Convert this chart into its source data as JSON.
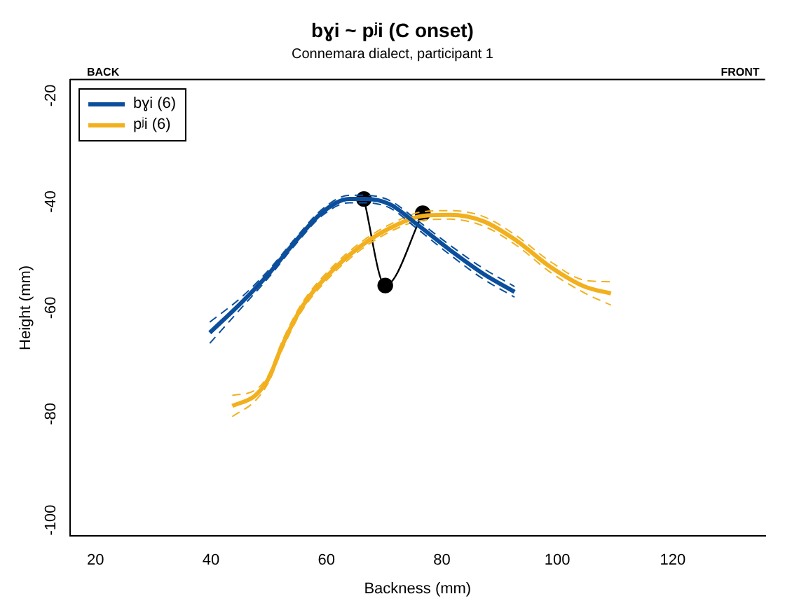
{
  "chart_data": {
    "type": "line",
    "title": "bɣi ~ pʲi (C onset)",
    "subtitle": "Connemara dialect, participant 1",
    "xlabel": "Backness (mm)",
    "ylabel": "Height (mm)",
    "annotations": [
      "BACK",
      "FRONT"
    ],
    "xlim": [
      15.6,
      136
    ],
    "xticks": [
      20,
      40,
      60,
      80,
      100,
      120
    ],
    "ylim": [
      -103,
      -17
    ],
    "yticks": [
      -100,
      -80,
      -60,
      -40,
      -20
    ],
    "grid": false,
    "legend": "top left",
    "marker": "none",
    "line_style": "solid",
    "series": [
      {
        "name": "bɣi (6)",
        "color": "#0b4f9c",
        "x": [
          39.8,
          45.3,
          50,
          54.7,
          59.3,
          64,
          66.7,
          71,
          75.6,
          81.4,
          87.2,
          92.6
        ],
        "values": [
          -64.7,
          -59,
          -53.6,
          -47.4,
          -42,
          -39.5,
          -39.5,
          -40.5,
          -44.2,
          -49.1,
          -53.6,
          -57
        ]
      },
      {
        "name": "pʲi (6)",
        "color": "#f2b01e",
        "x": [
          43.7,
          47.7,
          50,
          52.3,
          55.8,
          60.5,
          66.3,
          72.1,
          76.7,
          81.4,
          87.2,
          93,
          98.8,
          104.7,
          109.3
        ],
        "values": [
          -78.5,
          -76.5,
          -73.3,
          -67.2,
          -59.8,
          -53.6,
          -48.1,
          -44.4,
          -42.7,
          -42.5,
          -43.7,
          -47.4,
          -52.3,
          -56,
          -57.3
        ]
      },
      {
        "color": "#0b4f9c",
        "line_style": "dashed",
        "x": [
          39.8,
          45.3,
          50,
          54.7,
          59.3,
          64,
          66.7,
          71,
          75.6,
          81.4,
          87.2,
          92.6
        ],
        "values": [
          -66.7,
          -60,
          -54.3,
          -48,
          -42.6,
          -40.2,
          -40.2,
          -41.2,
          -45,
          -50,
          -54.6,
          -58
        ]
      },
      {
        "color": "#0b4f9c",
        "line_style": "dashed",
        "x": [
          39.8,
          45.3,
          50,
          54.7,
          59.3,
          64,
          66.7,
          71,
          75.6,
          81.4,
          87.2,
          92.6
        ],
        "values": [
          -62.7,
          -58,
          -52.9,
          -46.8,
          -41.4,
          -38.8,
          -38.8,
          -39.8,
          -43.4,
          -48.2,
          -52.6,
          -56
        ]
      },
      {
        "color": "#f2b01e",
        "line_style": "dashed",
        "x": [
          43.7,
          47.7,
          50,
          52.3,
          55.8,
          60.5,
          66.3,
          72.1,
          76.7,
          81.4,
          87.2,
          93,
          98.8,
          104.7,
          109.3
        ],
        "values": [
          -80.5,
          -77.5,
          -74,
          -68,
          -60.5,
          -54.3,
          -48.8,
          -45.1,
          -43.5,
          -43.3,
          -44.6,
          -48.3,
          -53.3,
          -57.2,
          -59.5
        ]
      },
      {
        "color": "#f2b01e",
        "line_style": "dashed",
        "x": [
          43.7,
          47.7,
          50,
          52.3,
          55.8,
          60.5,
          66.3,
          72.1,
          76.7,
          81.4,
          87.2,
          93,
          98.8,
          104.7,
          109.3
        ],
        "values": [
          -76.5,
          -75.5,
          -72.6,
          -66.4,
          -59.1,
          -52.9,
          -47.4,
          -43.7,
          -41.9,
          -41.7,
          -42.8,
          -46.5,
          -51.3,
          -54.8,
          -55.1
        ]
      },
      {
        "color": "#000000",
        "marker": "circle",
        "x": [
          66.5,
          70.2,
          76.7
        ],
        "values": [
          -39.5,
          -55.8,
          -42.2
        ]
      }
    ]
  }
}
